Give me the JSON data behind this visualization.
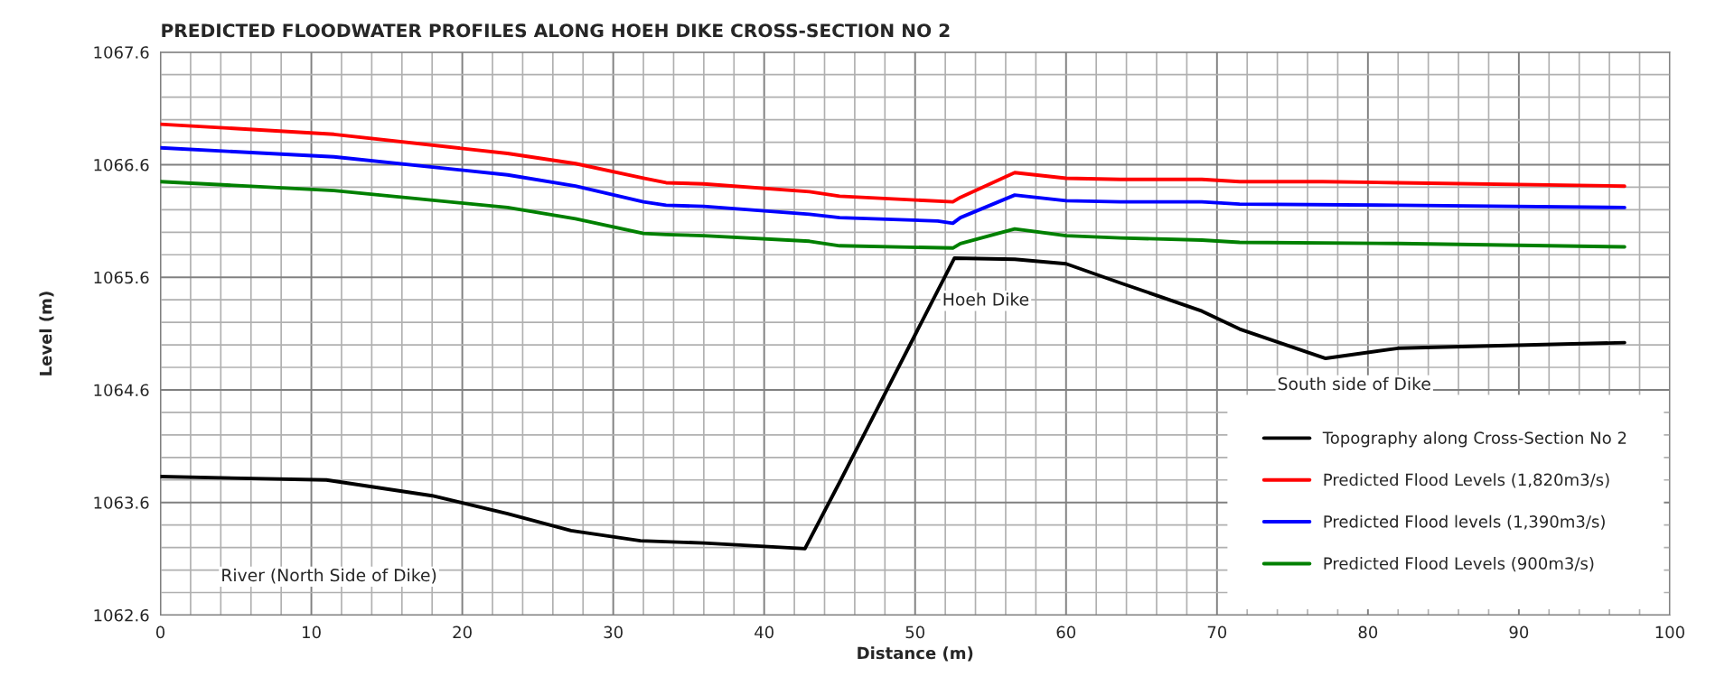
{
  "chart_data": {
    "type": "line",
    "title": "PREDICTED FLOODWATER PROFILES ALONG HOEH DIKE CROSS-SECTION NO 2",
    "xlabel": "Distance (m)",
    "ylabel": "Level (m)",
    "xlim": [
      0,
      100
    ],
    "xticks": [
      0,
      10,
      20,
      30,
      40,
      50,
      60,
      70,
      80,
      90,
      100
    ],
    "ylim": [
      1062.6,
      1067.6
    ],
    "yticks": [
      1062.6,
      1063.6,
      1064.6,
      1065.6,
      1066.6,
      1067.6
    ],
    "grid": true,
    "legend": "bottom right",
    "marker": "none",
    "line_style": "solid",
    "annotations": [
      "Hoeh Dike",
      "South side of Dike",
      "River (North Side of Dike)"
    ],
    "series": [
      {
        "name": "Topography along Cross-Section No 2",
        "color": "#000000",
        "x": [
          0,
          11,
          18,
          23,
          27.2,
          31.8,
          36,
          42.7,
          45,
          52.6,
          56.6,
          60,
          63.6,
          69,
          71.5,
          77.2,
          82,
          97
        ],
        "values": [
          1063.83,
          1063.8,
          1063.66,
          1063.5,
          1063.35,
          1063.26,
          1063.24,
          1063.19,
          1063.78,
          1065.77,
          1065.76,
          1065.72,
          1065.55,
          1065.3,
          1065.14,
          1064.88,
          1064.97,
          1065.02
        ]
      },
      {
        "name": "Predicted Flood Levels (1,820m3/s)",
        "color": "#ff0000",
        "x": [
          0,
          11.5,
          23,
          27.5,
          32,
          33.5,
          36,
          43,
          45,
          52.5,
          53,
          56.6,
          60,
          63.6,
          69,
          71.5,
          77,
          82,
          97
        ],
        "values": [
          1066.96,
          1066.87,
          1066.7,
          1066.61,
          1066.48,
          1066.44,
          1066.43,
          1066.36,
          1066.32,
          1066.27,
          1066.31,
          1066.53,
          1066.48,
          1066.47,
          1066.47,
          1066.45,
          1066.45,
          1066.44,
          1066.41
        ]
      },
      {
        "name": "Predicted Flood levels (1,390m3/s)",
        "color": "#0000ff",
        "x": [
          0,
          11.5,
          23,
          27.5,
          32,
          33.5,
          36,
          43,
          45,
          51.5,
          52.5,
          53,
          56.6,
          60,
          63.6,
          69,
          71.5,
          82,
          97
        ],
        "values": [
          1066.75,
          1066.67,
          1066.51,
          1066.41,
          1066.27,
          1066.24,
          1066.23,
          1066.16,
          1066.13,
          1066.1,
          1066.08,
          1066.13,
          1066.33,
          1066.28,
          1066.27,
          1066.27,
          1066.25,
          1066.24,
          1066.22
        ]
      },
      {
        "name": "Predicted Flood Levels (900m3/s)",
        "color": "#008000",
        "x": [
          0,
          11.5,
          23,
          27.5,
          32,
          33.5,
          36,
          43,
          45,
          52.5,
          53,
          56.6,
          60,
          63.6,
          69,
          71.5,
          82,
          97
        ],
        "values": [
          1066.45,
          1066.37,
          1066.22,
          1066.12,
          1065.99,
          1065.98,
          1065.97,
          1065.92,
          1065.88,
          1065.86,
          1065.9,
          1066.03,
          1065.97,
          1065.95,
          1065.93,
          1065.91,
          1065.9,
          1065.87
        ]
      }
    ]
  }
}
